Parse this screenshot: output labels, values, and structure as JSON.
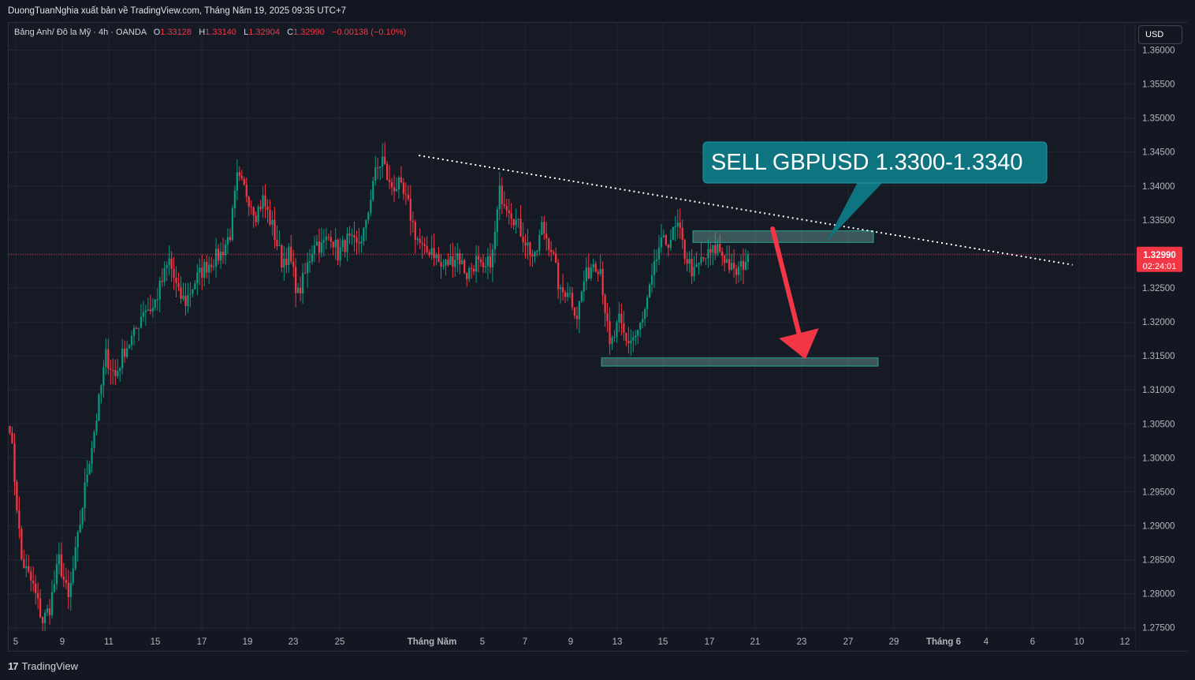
{
  "header": {
    "publisher": "DuongTuanNghia xuất bản về TradingView.com, Tháng Năm 19, 2025 09:35 UTC+7"
  },
  "symbol": {
    "name": "Bảng Anh/ Đô la Mỹ · 4h · OANDA",
    "open_label": "O",
    "open": "1.33128",
    "high_label": "H",
    "high": "1.33140",
    "low_label": "L",
    "low": "1.32904",
    "close_label": "C",
    "close": "1.32990",
    "change": "−0.00138 (−0.10%)"
  },
  "currency_button": "USD",
  "price_tag": {
    "price": "1.32990",
    "countdown": "02:24:01"
  },
  "brand": {
    "logo": "17",
    "name": "TradingView"
  },
  "annotation": {
    "text": "SELL GBPUSD 1.3300-1.3340"
  },
  "colors": {
    "up": "#089981",
    "down": "#f23645",
    "background": "#161a25",
    "grid": "#232632",
    "callout": "#0e7480",
    "arrow": "#f23645",
    "zone": "#5d8a86"
  },
  "chart_data": {
    "type": "candlestick",
    "ylim": [
      1.2745,
      1.3618
    ],
    "y_ticks": [
      "1.36000",
      "1.35500",
      "1.35000",
      "1.34500",
      "1.34000",
      "1.33500",
      "1.33000",
      "1.32500",
      "1.32000",
      "1.31500",
      "1.31000",
      "1.30500",
      "1.30000",
      "1.29500",
      "1.29000",
      "1.28500",
      "1.28000",
      "1.27500"
    ],
    "x_ticks": [
      "5",
      "9",
      "11",
      "15",
      "17",
      "19",
      "23",
      "25",
      "Tháng Năm",
      "5",
      "7",
      "9",
      "13",
      "15",
      "17",
      "21",
      "23",
      "27",
      "29",
      "Tháng 6",
      "4",
      "6",
      "10",
      "12"
    ],
    "last_price": 1.3299,
    "path_points": [
      [
        0,
        1.305
      ],
      [
        5,
        1.285
      ],
      [
        10,
        1.281
      ],
      [
        14,
        1.276
      ],
      [
        17,
        1.278
      ],
      [
        21,
        1.285
      ],
      [
        25,
        1.279
      ],
      [
        29,
        1.288
      ],
      [
        33,
        1.298
      ],
      [
        37,
        1.306
      ],
      [
        41,
        1.315
      ],
      [
        45,
        1.312
      ],
      [
        49,
        1.316
      ],
      [
        53,
        1.318
      ],
      [
        57,
        1.322
      ],
      [
        61,
        1.322
      ],
      [
        64,
        1.325
      ],
      [
        68,
        1.329
      ],
      [
        72,
        1.324
      ],
      [
        75,
        1.323
      ],
      [
        79,
        1.326
      ],
      [
        83,
        1.328
      ],
      [
        86,
        1.329
      ],
      [
        90,
        1.33
      ],
      [
        94,
        1.333
      ],
      [
        97,
        1.341
      ],
      [
        101,
        1.339
      ],
      [
        105,
        1.336
      ],
      [
        108,
        1.338
      ],
      [
        112,
        1.334
      ],
      [
        116,
        1.329
      ],
      [
        119,
        1.33
      ],
      [
        123,
        1.324
      ],
      [
        126,
        1.327
      ],
      [
        130,
        1.332
      ],
      [
        133,
        1.331
      ],
      [
        137,
        1.333
      ],
      [
        140,
        1.33
      ],
      [
        144,
        1.332
      ],
      [
        148,
        1.331
      ],
      [
        152,
        1.334
      ],
      [
        155,
        1.341
      ],
      [
        159,
        1.344
      ],
      [
        162,
        1.34
      ],
      [
        166,
        1.34
      ],
      [
        170,
        1.337
      ],
      [
        173,
        1.333
      ],
      [
        177,
        1.33
      ],
      [
        180,
        1.331
      ],
      [
        184,
        1.328
      ],
      [
        188,
        1.329
      ],
      [
        191,
        1.33
      ],
      [
        195,
        1.327
      ],
      [
        199,
        1.329
      ],
      [
        202,
        1.327
      ],
      [
        206,
        1.33
      ],
      [
        209,
        1.339
      ],
      [
        213,
        1.337
      ],
      [
        217,
        1.334
      ],
      [
        220,
        1.332
      ],
      [
        224,
        1.329
      ],
      [
        227,
        1.334
      ],
      [
        231,
        1.331
      ],
      [
        235,
        1.324
      ],
      [
        238,
        1.325
      ],
      [
        242,
        1.321
      ],
      [
        245,
        1.326
      ],
      [
        249,
        1.329
      ],
      [
        252,
        1.328
      ],
      [
        256,
        1.316
      ],
      [
        260,
        1.32
      ],
      [
        263,
        1.317
      ],
      [
        267,
        1.318
      ],
      [
        270,
        1.32
      ],
      [
        274,
        1.326
      ],
      [
        277,
        1.331
      ],
      [
        281,
        1.332
      ],
      [
        285,
        1.334
      ],
      [
        288,
        1.33
      ],
      [
        292,
        1.327
      ],
      [
        295,
        1.329
      ],
      [
        299,
        1.33
      ],
      [
        302,
        1.331
      ],
      [
        306,
        1.329
      ],
      [
        309,
        1.327
      ],
      [
        312,
        1.328
      ],
      [
        315,
        1.33
      ]
    ],
    "trendline": {
      "from": [
        175,
        1.3445
      ],
      "to": [
        454,
        1.3284
      ]
    },
    "zones": [
      {
        "from": 292,
        "to": 369,
        "low": 1.3317,
        "high": 1.3334
      },
      {
        "from": 253,
        "to": 371,
        "low": 1.3135,
        "high": 1.3147
      }
    ],
    "arrow": {
      "from": [
        326,
        1.3337
      ],
      "to": [
        340,
        1.3145
      ]
    },
    "callout_anchor": [
      349,
      1.3318
    ]
  }
}
